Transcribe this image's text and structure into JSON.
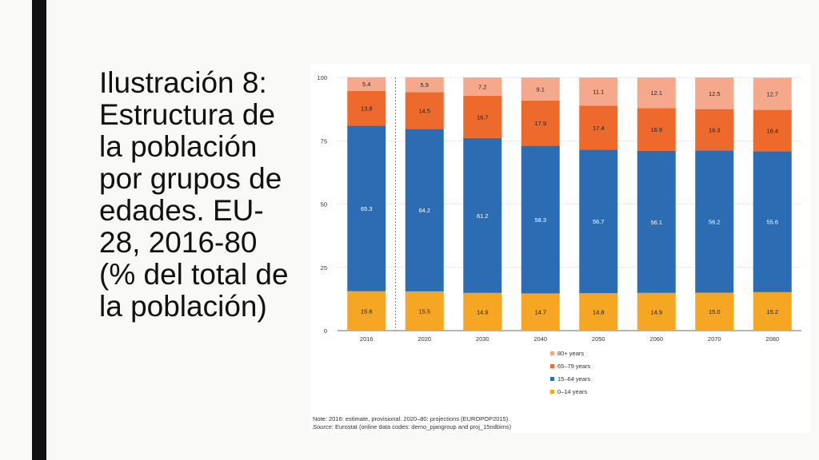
{
  "slide": {
    "title": "Ilustración 8:\nEstructura de\nla población\npor grupos de\nedades. EU-\n28, 2016-80\n(% del total de\nla población)"
  },
  "chart_data": {
    "type": "bar",
    "stacked": true,
    "title": "",
    "xlabel": "",
    "ylabel": "",
    "ylim": [
      0,
      100
    ],
    "yticks": [
      0,
      25,
      50,
      75,
      100
    ],
    "categories": [
      "2016",
      "2020",
      "2030",
      "2040",
      "2050",
      "2060",
      "2070",
      "2080"
    ],
    "series": [
      {
        "name": "0–14 years",
        "color": "#f5a623",
        "values": [
          15.6,
          15.5,
          14.9,
          14.7,
          14.8,
          14.9,
          15.0,
          15.2
        ]
      },
      {
        "name": "15–64 years",
        "color": "#2b6cb3",
        "values": [
          65.3,
          64.2,
          61.2,
          58.3,
          56.7,
          56.1,
          56.2,
          55.6
        ]
      },
      {
        "name": "65–79 years",
        "color": "#ed6a2c",
        "values": [
          13.8,
          14.5,
          16.7,
          17.9,
          17.4,
          16.9,
          16.3,
          16.4
        ]
      },
      {
        "name": "80+ years",
        "color": "#f4a98c",
        "values": [
          5.4,
          5.9,
          7.2,
          9.1,
          11.1,
          12.1,
          12.5,
          12.7
        ]
      }
    ],
    "legend_order": [
      "80+ years",
      "65–79 years",
      "15–64 years",
      "0–14 years"
    ],
    "legend_position": "bottom-center",
    "separator_after_category": "2016"
  },
  "note": {
    "line1": "Note: 2016: estimate, provisional. 2020–80: projections (EUROPOP2015).",
    "source_label": "Source:",
    "source_text": " Eurostat (online data codes: demo_pjangroup and proj_15ndbims)"
  }
}
